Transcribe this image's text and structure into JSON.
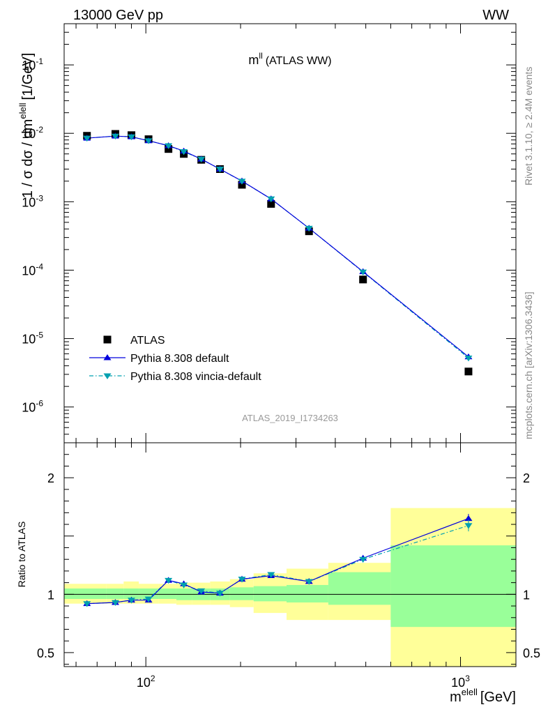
{
  "header": {
    "left": "13000 GeV pp",
    "right": "WW"
  },
  "side": {
    "rivet": "Rivet 3.1.10, ≥ 2.4M events",
    "mcplots": "mcplots.cern.ch [arXiv:1306.3436]"
  },
  "colors": {
    "data": "#000000",
    "default": "#0000dd",
    "vincia": "#00a0b0",
    "band_inner": "#99ff99",
    "band_outer": "#ffff99"
  },
  "chart_data": [
    {
      "type": "scatter",
      "title": "m^ll (ATLAS WW)",
      "title_main": "m",
      "title_sup": "ll",
      "title_rest": "(ATLAS WW)",
      "ylabel": "1 / σ  dσ / dm^elell [1/GeV]",
      "ylabel_main": "1 / σ  dσ / dm",
      "ylabel_sup": "elell",
      "ylabel_unit": "[1/GeV]",
      "yscale": "log",
      "xscale": "log",
      "xlim": [
        55,
        1500
      ],
      "ylim": [
        3e-07,
        0.4
      ],
      "y_ticks": [
        {
          "v": 0.1,
          "base": "10",
          "exp": "-1"
        },
        {
          "v": 0.01,
          "base": "10",
          "exp": "-2"
        },
        {
          "v": 0.001,
          "base": "10",
          "exp": "-3"
        },
        {
          "v": 0.0001,
          "base": "10",
          "exp": "-4"
        },
        {
          "v": 1e-05,
          "base": "10",
          "exp": "-5"
        },
        {
          "v": 1e-06,
          "base": "10",
          "exp": "-6"
        }
      ],
      "watermark": "ATLAS_2019_I1734263",
      "legend_position": "bottom-left",
      "bin_edges": [
        55,
        75,
        85,
        95,
        110,
        125,
        140,
        160,
        185,
        220,
        280,
        380,
        600,
        1500
      ],
      "x": [
        65,
        80,
        90,
        102,
        118,
        132,
        150,
        172,
        202,
        250,
        330,
        490,
        1060
      ],
      "series": [
        {
          "name": "ATLAS",
          "marker": "square",
          "values": [
            0.0092,
            0.0098,
            0.0094,
            0.0082,
            0.0059,
            0.005,
            0.0041,
            0.003,
            0.00177,
            0.00093,
            0.00037,
            7.3e-05,
            3.3e-06
          ]
        },
        {
          "name": "Pythia 8.308 default",
          "marker": "triangle-up",
          "line": "solid",
          "values": [
            0.0085,
            0.0091,
            0.0089,
            0.0078,
            0.0066,
            0.0055,
            0.0042,
            0.003,
            0.00201,
            0.0011,
            0.00041,
            9.5e-05,
            5.4e-06
          ]
        },
        {
          "name": "Pythia 8.308 vincia-default",
          "marker": "triangle-down",
          "line": "dashdot",
          "values": [
            0.0085,
            0.0091,
            0.0089,
            0.0078,
            0.0066,
            0.0054,
            0.0042,
            0.003,
            0.002,
            0.0011,
            0.00041,
            9.4e-05,
            5.2e-06
          ]
        }
      ]
    },
    {
      "type": "scatter",
      "ylabel": "Ratio to ATLAS",
      "xlabel": "m^elell [GeV]",
      "xlabel_main": "m",
      "xlabel_sup": "elell",
      "xlabel_unit": "[GeV]",
      "ylim": [
        0.38,
        2.3
      ],
      "xlim": [
        55,
        1500
      ],
      "y_ticks": [
        {
          "v": 0.5,
          "label": "0.5"
        },
        {
          "v": 1,
          "label": "1"
        },
        {
          "v": 2,
          "label": "2"
        }
      ],
      "x_ticks": [
        {
          "v": 100,
          "base": "10",
          "exp": "2"
        },
        {
          "v": 1000,
          "base": "10",
          "exp": "3"
        }
      ],
      "reference": 1,
      "band_edges": [
        55,
        75,
        85,
        95,
        110,
        125,
        140,
        160,
        185,
        220,
        280,
        380,
        600,
        1500
      ],
      "band_inner": [
        [
          0.96,
          1.05
        ],
        [
          0.96,
          1.05
        ],
        [
          0.96,
          1.05
        ],
        [
          0.96,
          1.05
        ],
        [
          0.96,
          1.05
        ],
        [
          0.95,
          1.05
        ],
        [
          0.95,
          1.05
        ],
        [
          0.95,
          1.05
        ],
        [
          0.95,
          1.06
        ],
        [
          0.94,
          1.07
        ],
        [
          0.93,
          1.08
        ],
        [
          0.91,
          1.19
        ],
        [
          0.72,
          1.42
        ]
      ],
      "band_outer": [
        [
          0.92,
          1.09
        ],
        [
          0.92,
          1.09
        ],
        [
          0.92,
          1.11
        ],
        [
          0.92,
          1.09
        ],
        [
          0.92,
          1.09
        ],
        [
          0.91,
          1.1
        ],
        [
          0.91,
          1.1
        ],
        [
          0.91,
          1.11
        ],
        [
          0.89,
          1.13
        ],
        [
          0.84,
          1.18
        ],
        [
          0.78,
          1.22
        ],
        [
          0.78,
          1.27
        ],
        [
          0.38,
          1.74
        ]
      ],
      "series": [
        {
          "name": "Pythia 8.308 default",
          "values": [
            0.92,
            0.93,
            0.95,
            0.95,
            1.12,
            1.09,
            1.02,
            1.01,
            1.13,
            1.16,
            1.11,
            1.31,
            1.65
          ]
        },
        {
          "name": "Pythia 8.308 vincia-default",
          "values": [
            0.92,
            0.93,
            0.95,
            0.96,
            1.12,
            1.08,
            1.03,
            1.01,
            1.13,
            1.17,
            1.11,
            1.3,
            1.59
          ]
        }
      ]
    }
  ]
}
